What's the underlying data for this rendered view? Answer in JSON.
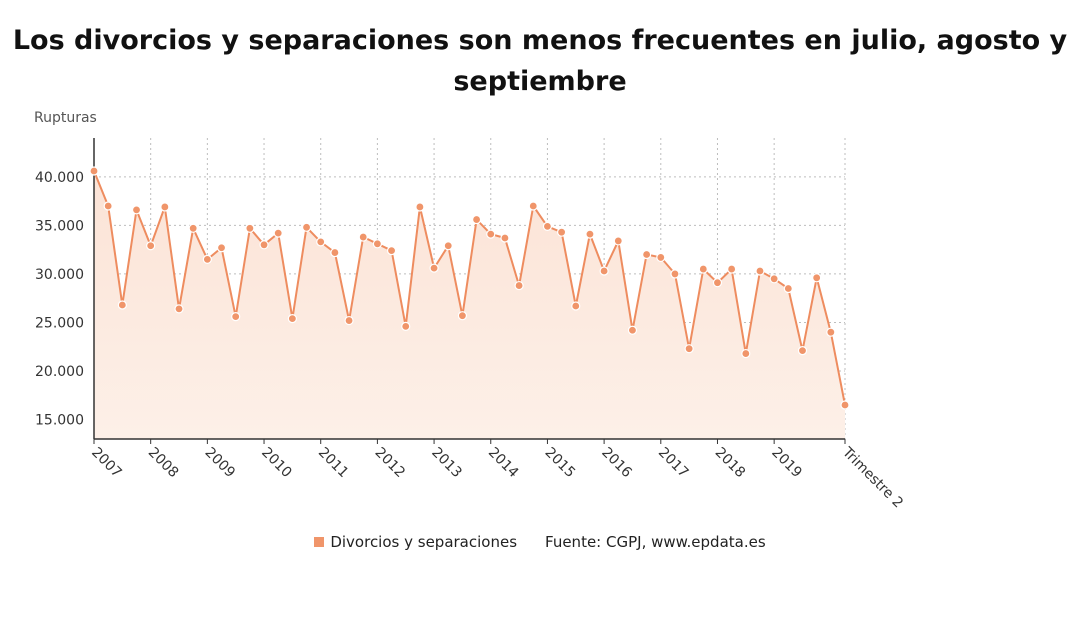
{
  "title": "Los divorcios y separaciones son menos frecuentes en julio, agosto y septiembre",
  "legend": {
    "series_label": "Divorcios y separaciones",
    "source": "Fuente: CGPJ, www.epdata.es"
  },
  "colors": {
    "line": "#ee8c5f",
    "point": "#f0956a",
    "area_top": "#fbe3d6",
    "area_bottom": "#fdf0e8"
  },
  "chart_data": {
    "type": "line",
    "title": "Los divorcios y separaciones son menos frecuentes en julio, agosto y septiembre",
    "ylabel": "Rupturas",
    "xlabel": "",
    "ylim": [
      13000,
      44000
    ],
    "yticks": [
      15000,
      20000,
      25000,
      30000,
      35000,
      40000
    ],
    "ytick_labels": [
      "15.000",
      "20.000",
      "25.000",
      "30.000",
      "35.000",
      "40.000"
    ],
    "xtick_labels": [
      "2007",
      "2008",
      "2009",
      "2010",
      "2011",
      "2012",
      "2013",
      "2014",
      "2015",
      "2016",
      "2017",
      "2018",
      "2019",
      "Trimestre 2"
    ],
    "xtick_positions": [
      0,
      4,
      8,
      12,
      16,
      20,
      24,
      28,
      32,
      36,
      40,
      44,
      48,
      53
    ],
    "grid": true,
    "legend_position": "bottom",
    "series": [
      {
        "name": "Divorcios y separaciones",
        "values": [
          40600,
          37000,
          26800,
          36600,
          32900,
          36900,
          26400,
          34700,
          31500,
          32700,
          25600,
          34700,
          33000,
          34200,
          25400,
          34800,
          33300,
          32200,
          25200,
          33800,
          33100,
          32400,
          24600,
          36900,
          30600,
          32900,
          25700,
          35600,
          34100,
          33700,
          28800,
          37000,
          34900,
          34300,
          26700,
          34100,
          30300,
          33400,
          24200,
          32000,
          31700,
          30000,
          22300,
          30500,
          29100,
          30500,
          21800,
          30300,
          29500,
          28500,
          22100,
          29600,
          24000,
          16500
        ]
      }
    ]
  }
}
